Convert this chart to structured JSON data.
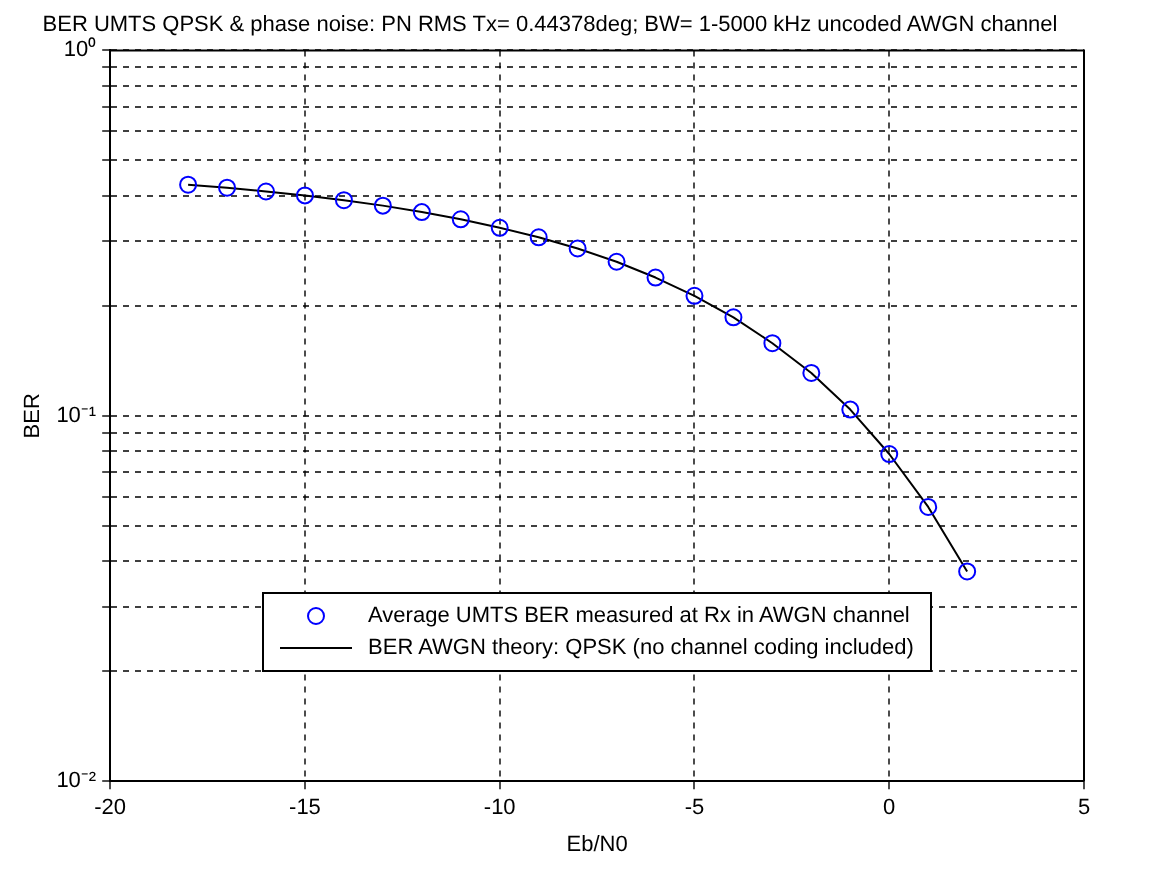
{
  "chart_data": {
    "type": "line",
    "title": "BER UMTS QPSK & phase noise: PN RMS Tx= 0.44378deg; BW= 1-5000 kHz uncoded AWGN channel",
    "xlabel": "Eb/N0",
    "ylabel": "BER",
    "x": [
      -18,
      -17,
      -16,
      -15,
      -14,
      -13,
      -12,
      -11,
      -10,
      -9,
      -8,
      -7,
      -6,
      -5,
      -4,
      -3,
      -2,
      -1,
      0,
      1,
      2
    ],
    "series": [
      {
        "name": "Average UMTS BER measured at Rx in AWGN channel",
        "type": "scatter",
        "color": "#0000ff",
        "marker": "circle",
        "values": [
          0.429,
          0.421,
          0.411,
          0.401,
          0.389,
          0.376,
          0.361,
          0.345,
          0.327,
          0.308,
          0.287,
          0.264,
          0.239,
          0.213,
          0.186,
          0.158,
          0.131,
          0.104,
          0.0786,
          0.0563,
          0.0375
        ]
      },
      {
        "name": "BER AWGN theory: QPSK (no channel coding included)",
        "type": "line",
        "color": "#000000",
        "marker": "none",
        "values": [
          0.429,
          0.421,
          0.411,
          0.401,
          0.389,
          0.376,
          0.361,
          0.345,
          0.327,
          0.308,
          0.287,
          0.264,
          0.239,
          0.213,
          0.186,
          0.158,
          0.131,
          0.104,
          0.0786,
          0.0563,
          0.0375
        ]
      }
    ],
    "xlim": [
      -20,
      5
    ],
    "xticks": [
      -20,
      -15,
      -10,
      -5,
      0,
      5
    ],
    "ylim": [
      0.01,
      1
    ],
    "yticks": [
      {
        "value": 0.01,
        "label": "10⁻²"
      },
      {
        "value": 0.02,
        "label": null
      },
      {
        "value": 0.03,
        "label": null
      },
      {
        "value": 0.04,
        "label": null
      },
      {
        "value": 0.05,
        "label": null
      },
      {
        "value": 0.06,
        "label": null
      },
      {
        "value": 0.07,
        "label": null
      },
      {
        "value": 0.08,
        "label": null
      },
      {
        "value": 0.09,
        "label": null
      },
      {
        "value": 0.1,
        "label": "10⁻¹"
      },
      {
        "value": 0.2,
        "label": null
      },
      {
        "value": 0.3,
        "label": null
      },
      {
        "value": 0.4,
        "label": null
      },
      {
        "value": 0.5,
        "label": null
      },
      {
        "value": 0.6,
        "label": null
      },
      {
        "value": 0.7,
        "label": null
      },
      {
        "value": 0.8,
        "label": null
      },
      {
        "value": 0.9,
        "label": null
      },
      {
        "value": 1,
        "label": "10⁰"
      }
    ],
    "log": "y",
    "grid": true,
    "legend": "bottom",
    "line_style": "solid"
  }
}
